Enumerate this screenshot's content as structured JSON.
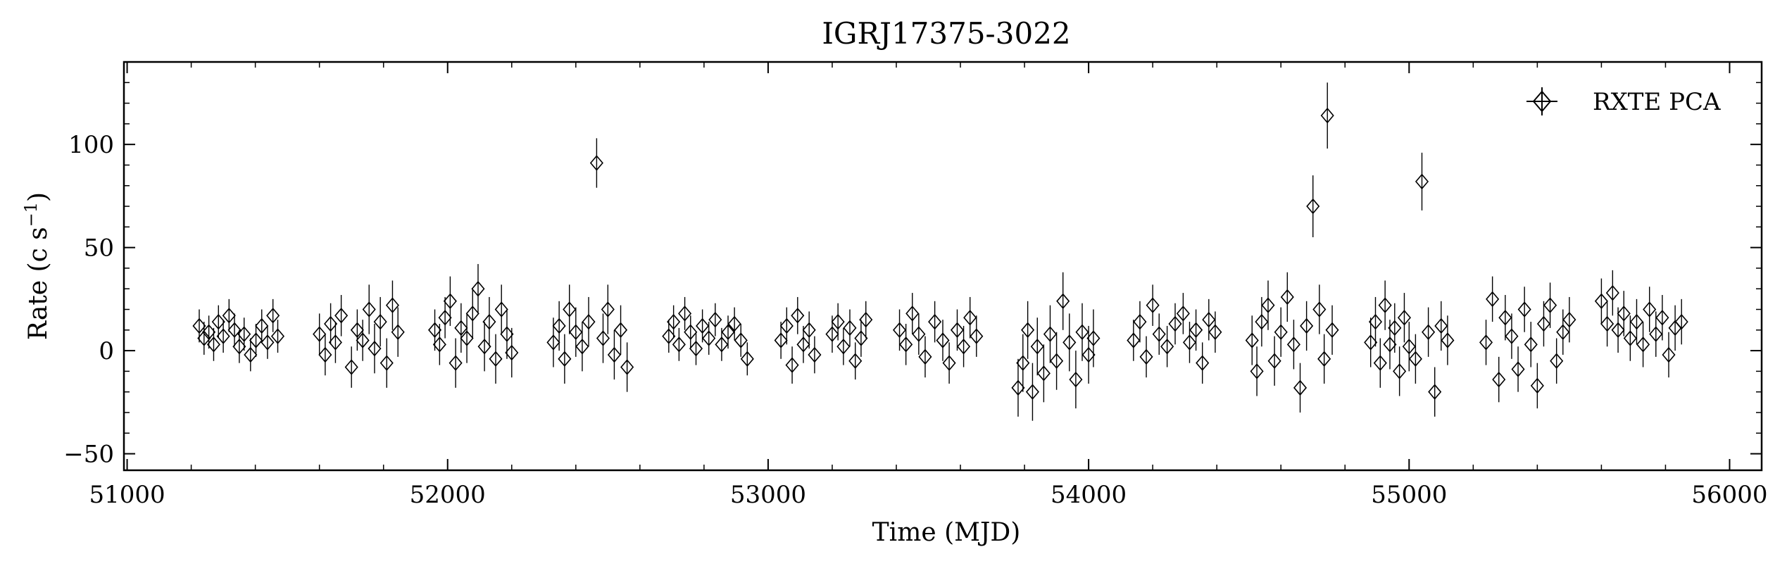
{
  "chart_data": {
    "type": "scatter",
    "title": "IGRJ17375-3022",
    "xlabel": "Time (MJD)",
    "ylabel_main": "Rate (c s",
    "ylabel_sup": "−1",
    "ylabel_close": ")",
    "xlim": [
      50990,
      56100
    ],
    "ylim": [
      -58,
      140
    ],
    "xticks": [
      51000,
      52000,
      53000,
      54000,
      55000,
      56000
    ],
    "xtick_labels": [
      "51000",
      "52000",
      "53000",
      "54000",
      "55000",
      "56000"
    ],
    "yticks": [
      -50,
      0,
      50,
      100
    ],
    "ytick_labels": [
      "−50",
      "0",
      "50",
      "100"
    ],
    "legend": {
      "label": "RXTE PCA",
      "position": "top-right"
    },
    "marker": "diamond-with-errorbars",
    "series": [
      {
        "name": "RXTE PCA",
        "x": [
          51225,
          51240,
          51255,
          51270,
          51285,
          51300,
          51318,
          51335,
          51350,
          51365,
          51385,
          51402,
          51420,
          51438,
          51455,
          51470,
          51600,
          51618,
          51635,
          51650,
          51668,
          51700,
          51718,
          51735,
          51755,
          51772,
          51790,
          51810,
          51828,
          51845,
          51960,
          51975,
          51992,
          52008,
          52025,
          52042,
          52060,
          52078,
          52095,
          52115,
          52130,
          52150,
          52168,
          52185,
          52200,
          52330,
          52348,
          52365,
          52380,
          52400,
          52420,
          52440,
          52465,
          52485,
          52500,
          52520,
          52540,
          52560,
          52690,
          52705,
          52722,
          52740,
          52758,
          52775,
          52795,
          52815,
          52835,
          52855,
          52875,
          52895,
          52915,
          52935,
          53040,
          53058,
          53075,
          53092,
          53110,
          53128,
          53145,
          53200,
          53218,
          53235,
          53255,
          53272,
          53290,
          53305,
          53410,
          53430,
          53450,
          53470,
          53490,
          53520,
          53545,
          53565,
          53590,
          53610,
          53630,
          53650,
          53780,
          53795,
          53810,
          53825,
          53840,
          53860,
          53880,
          53900,
          53920,
          53940,
          53960,
          53980,
          54000,
          54015,
          54140,
          54160,
          54180,
          54200,
          54220,
          54245,
          54270,
          54295,
          54315,
          54335,
          54355,
          54375,
          54395,
          54510,
          54525,
          54540,
          54560,
          54580,
          54600,
          54620,
          54640,
          54660,
          54680,
          54700,
          54720,
          54735,
          54745,
          54760,
          54880,
          54895,
          54910,
          54925,
          54940,
          54955,
          54970,
          54985,
          55000,
          55020,
          55040,
          55060,
          55080,
          55100,
          55120,
          55240,
          55260,
          55280,
          55300,
          55320,
          55340,
          55360,
          55380,
          55400,
          55420,
          55440,
          55460,
          55480,
          55500,
          55600,
          55618,
          55635,
          55652,
          55670,
          55690,
          55710,
          55730,
          55750,
          55770,
          55790,
          55810,
          55830,
          55850
        ],
        "y": [
          12,
          6,
          9,
          3,
          14,
          7,
          17,
          10,
          2,
          8,
          -2,
          5,
          12,
          4,
          17,
          7,
          8,
          -2,
          13,
          4,
          17,
          -8,
          10,
          5,
          20,
          1,
          14,
          -6,
          22,
          9,
          10,
          3,
          16,
          24,
          -6,
          11,
          6,
          18,
          30,
          2,
          14,
          -4,
          20,
          8,
          -1,
          4,
          12,
          -4,
          20,
          9,
          2,
          14,
          91,
          6,
          20,
          -2,
          10,
          -8,
          7,
          14,
          3,
          18,
          9,
          1,
          12,
          6,
          15,
          3,
          9,
          13,
          5,
          -4,
          5,
          12,
          -7,
          17,
          3,
          10,
          -2,
          8,
          14,
          2,
          11,
          -5,
          6,
          15,
          10,
          3,
          18,
          8,
          -3,
          14,
          5,
          -6,
          10,
          2,
          16,
          7,
          -18,
          -6,
          10,
          -20,
          2,
          -11,
          8,
          -5,
          24,
          4,
          -14,
          9,
          -2,
          6,
          5,
          14,
          -3,
          22,
          8,
          2,
          13,
          18,
          4,
          10,
          -6,
          15,
          9,
          5,
          -10,
          14,
          22,
          -5,
          9,
          26,
          3,
          -18,
          12,
          70,
          20,
          -4,
          114,
          10,
          4,
          14,
          -6,
          22,
          3,
          11,
          -10,
          16,
          2,
          -4,
          82,
          9,
          -20,
          12,
          5,
          4,
          25,
          -14,
          16,
          7,
          -9,
          20,
          3,
          -17,
          13,
          22,
          -5,
          9,
          15,
          24,
          13,
          28,
          10,
          18,
          6,
          14,
          3,
          20,
          8,
          16,
          -2,
          11,
          14
        ],
        "y_err": [
          8,
          8,
          8,
          8,
          8,
          8,
          8,
          8,
          8,
          8,
          8,
          8,
          8,
          8,
          8,
          8,
          10,
          10,
          10,
          10,
          10,
          10,
          10,
          10,
          12,
          12,
          12,
          12,
          12,
          12,
          10,
          10,
          10,
          12,
          12,
          12,
          12,
          12,
          12,
          12,
          12,
          12,
          12,
          12,
          12,
          12,
          12,
          12,
          12,
          12,
          12,
          12,
          12,
          12,
          12,
          12,
          12,
          12,
          8,
          8,
          8,
          8,
          8,
          8,
          8,
          8,
          8,
          8,
          8,
          8,
          8,
          8,
          9,
          9,
          9,
          9,
          9,
          9,
          9,
          9,
          9,
          9,
          9,
          9,
          9,
          9,
          10,
          10,
          10,
          10,
          10,
          10,
          10,
          10,
          10,
          10,
          10,
          10,
          14,
          14,
          14,
          14,
          14,
          14,
          14,
          14,
          14,
          14,
          14,
          14,
          14,
          14,
          10,
          10,
          10,
          10,
          10,
          10,
          10,
          10,
          10,
          10,
          10,
          10,
          10,
          12,
          12,
          12,
          12,
          12,
          12,
          12,
          12,
          12,
          12,
          15,
          12,
          12,
          16,
          12,
          12,
          12,
          12,
          12,
          12,
          12,
          12,
          12,
          12,
          12,
          14,
          12,
          12,
          12,
          12,
          11,
          11,
          11,
          11,
          11,
          11,
          11,
          11,
          11,
          11,
          11,
          11,
          11,
          11,
          11,
          11,
          11,
          11,
          11,
          11,
          11,
          11,
          11,
          11,
          11,
          11,
          11,
          11
        ]
      }
    ]
  },
  "colors": {
    "axes": "#000000",
    "markers": "#000000",
    "background": "#ffffff"
  }
}
